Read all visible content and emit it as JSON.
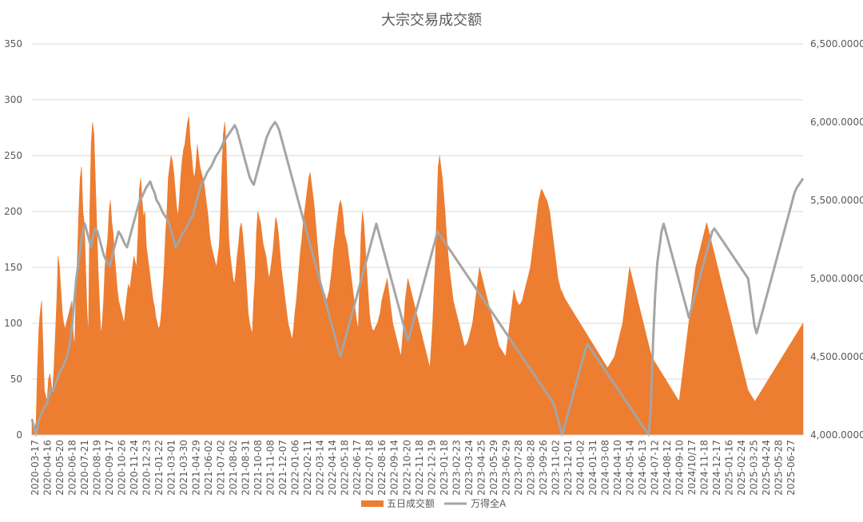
{
  "chart_data": {
    "type": "area",
    "title": "大宗交易成交额",
    "xlabel": "",
    "ylabel": "",
    "y2label": "",
    "grid": true,
    "legend_position": "bottom",
    "ylim": [
      0,
      350
    ],
    "yticks": [
      0,
      50,
      100,
      150,
      200,
      250,
      300,
      350
    ],
    "y2lim": [
      4000,
      6500
    ],
    "y2ticks": [
      4000,
      4500,
      5000,
      5500,
      6000,
      6500
    ],
    "y2tick_labels": [
      "4,000.0000",
      "4,500.0000",
      "5,000.0000",
      "5,500.0000",
      "6,000.0000",
      "6,500.0000"
    ],
    "x_tick_labels": [
      "2020-03-17",
      "2020-04-16",
      "2020-05-20",
      "2020-06-18",
      "2020-07-21",
      "2020-08-19",
      "2020-09-17",
      "2020-10-26",
      "2020-11-24",
      "2020-12-23",
      "2021-01-22",
      "2021-03-01",
      "2021-03-30",
      "2021-04-29",
      "2021-06-02",
      "2021-07-02",
      "2021-08-02",
      "2021-08-31",
      "2021-10-08",
      "2021-11-08",
      "2021-12-07",
      "2022-01-06",
      "2022-02-11",
      "2022-03-14",
      "2022-04-14",
      "2022-05-18",
      "2022-06-17",
      "2022-07-18",
      "2022-08-16",
      "2022-09-14",
      "2022-10-20",
      "2022-11-18",
      "2022-12-19",
      "2023-01-18",
      "2023-02-23",
      "2023-03-24",
      "2023-04-25",
      "2023-05-29",
      "2023-06-29",
      "2023-07-28",
      "2023-08-28",
      "2023-09-26",
      "2023-11-02",
      "2023-12-01",
      "2024-01-02",
      "2024-01-31",
      "2024-03-08",
      "2024-04-10",
      "2024-05-14",
      "2024-06-13",
      "2024-07-12",
      "2024-08-12",
      "2024-09-10",
      "2024/10/17",
      "2024-11-18",
      "2024-12-17",
      "2025-01-16",
      "2025-02-24",
      "2025-03-25",
      "2025-04-24",
      "2025-05-28",
      "2025-06-27"
    ],
    "colors": {
      "bars": "#ed7d31",
      "line": "#a5a5a5",
      "grid": "#d9d9d9",
      "text": "#595959"
    },
    "series": [
      {
        "name": "五日成交额",
        "axis": "left",
        "kind": "area",
        "values": [
          15,
          8,
          5,
          12,
          60,
          95,
          110,
          120,
          80,
          40,
          35,
          30,
          50,
          55,
          45,
          40,
          60,
          90,
          120,
          160,
          150,
          130,
          110,
          100,
          95,
          100,
          105,
          110,
          115,
          120,
          90,
          80,
          130,
          160,
          200,
          230,
          240,
          200,
          190,
          150,
          110,
          90,
          200,
          260,
          280,
          270,
          230,
          190,
          150,
          120,
          90,
          100,
          120,
          150,
          165,
          175,
          200,
          210,
          190,
          180,
          160,
          145,
          130,
          120,
          115,
          110,
          105,
          100,
          115,
          125,
          135,
          130,
          140,
          150,
          160,
          155,
          150,
          180,
          220,
          230,
          210,
          195,
          200,
          170,
          160,
          150,
          140,
          130,
          120,
          115,
          105,
          100,
          95,
          98,
          110,
          130,
          150,
          180,
          200,
          230,
          240,
          250,
          245,
          235,
          220,
          205,
          195,
          210,
          230,
          245,
          255,
          260,
          270,
          280,
          285,
          260,
          250,
          235,
          230,
          240,
          260,
          250,
          240,
          235,
          230,
          225,
          215,
          205,
          195,
          180,
          170,
          165,
          160,
          155,
          150,
          160,
          170,
          200,
          240,
          270,
          280,
          260,
          210,
          175,
          160,
          150,
          140,
          135,
          145,
          160,
          170,
          185,
          190,
          180,
          165,
          150,
          130,
          110,
          100,
          95,
          90,
          120,
          140,
          180,
          200,
          195,
          190,
          180,
          170,
          165,
          160,
          150,
          140,
          145,
          155,
          165,
          180,
          195,
          190,
          180,
          165,
          150,
          140,
          130,
          120,
          110,
          100,
          95,
          90,
          85,
          95,
          110,
          120,
          135,
          150,
          165,
          175,
          190,
          200,
          210,
          220,
          230,
          235,
          225,
          215,
          205,
          190,
          175,
          160,
          145,
          135,
          130,
          128,
          125,
          120,
          125,
          130,
          140,
          150,
          165,
          175,
          185,
          195,
          205,
          210,
          205,
          195,
          180,
          175,
          170,
          160,
          150,
          140,
          130,
          120,
          110,
          100,
          95,
          140,
          180,
          200,
          190,
          170,
          150,
          130,
          110,
          100,
          95,
          93,
          95,
          98,
          100,
          105,
          110,
          120,
          125,
          130,
          135,
          140,
          130,
          120,
          110,
          100,
          95,
          90,
          85,
          80,
          75,
          70,
          85,
          100,
          120,
          130,
          140,
          135,
          130,
          125,
          120,
          115,
          110,
          105,
          100,
          95,
          90,
          85,
          80,
          75,
          70,
          65,
          60,
          80,
          100,
          130,
          160,
          200,
          240,
          250,
          240,
          230,
          215,
          200,
          180,
          165,
          150,
          140,
          130,
          120,
          115,
          110,
          105,
          100,
          95,
          90,
          85,
          80,
          80,
          82,
          85,
          90,
          95,
          100,
          110,
          120,
          130,
          140,
          150,
          145,
          140,
          135,
          130,
          125,
          120,
          115,
          110,
          105,
          100,
          95,
          90,
          85,
          80,
          78,
          76,
          74,
          72,
          70,
          80,
          90,
          100,
          110,
          120,
          130,
          125,
          120,
          118,
          116,
          118,
          120,
          125,
          130,
          135,
          140,
          145,
          150,
          160,
          170,
          180,
          190,
          200,
          210,
          215,
          220,
          218,
          215,
          212,
          210,
          205,
          200,
          190,
          180,
          170,
          160,
          150,
          140,
          135,
          130,
          128,
          125,
          122,
          120,
          118,
          116,
          114,
          112,
          110,
          108,
          106,
          104,
          102,
          100,
          98,
          96,
          94,
          92,
          90,
          88,
          86,
          84,
          82,
          80,
          78,
          76,
          74,
          72,
          70,
          68,
          66,
          64,
          62,
          60,
          62,
          64,
          66,
          68,
          70,
          75,
          80,
          85,
          90,
          95,
          100,
          110,
          120,
          130,
          140,
          150,
          145,
          140,
          135,
          130,
          125,
          120,
          115,
          110,
          105,
          100,
          95,
          90,
          85,
          80,
          75,
          70,
          68,
          66,
          64,
          62,
          60,
          58,
          56,
          54,
          52,
          50,
          48,
          46,
          44,
          42,
          40,
          38,
          36,
          34,
          32,
          30,
          40,
          50,
          60,
          70,
          80,
          90,
          100,
          110,
          120,
          130,
          140,
          150,
          155,
          160,
          165,
          170,
          175,
          180,
          185,
          190,
          185,
          180,
          175,
          170,
          165,
          160,
          155,
          150,
          145,
          140,
          135,
          130,
          125,
          120,
          115,
          110,
          105,
          100,
          95,
          90,
          85,
          80,
          75,
          70,
          65,
          60,
          55,
          50,
          45,
          40,
          38,
          36,
          34,
          32,
          30,
          32,
          34,
          36,
          38,
          40,
          42,
          44,
          46,
          48,
          50,
          52,
          54,
          56,
          58,
          60,
          62,
          64,
          66,
          68,
          70,
          72,
          74,
          76,
          78,
          80,
          82,
          84,
          86,
          88,
          90,
          92,
          94,
          96,
          98,
          100
        ],
        "note_values": "approximate, evenly spaced samples read from the plot"
      },
      {
        "name": "万得全A",
        "axis": "right",
        "kind": "line",
        "values": [
          4100,
          4050,
          4000,
          4080,
          4120,
          4150,
          4180,
          4200,
          4250,
          4300,
          4280,
          4320,
          4360,
          4400,
          4420,
          4450,
          4480,
          4520,
          4600,
          4700,
          4850,
          5000,
          5100,
          5200,
          5300,
          5350,
          5300,
          5250,
          5200,
          5280,
          5320,
          5300,
          5250,
          5200,
          5150,
          5120,
          5100,
          5080,
          5150,
          5200,
          5250,
          5300,
          5280,
          5250,
          5220,
          5200,
          5250,
          5300,
          5350,
          5400,
          5450,
          5500,
          5520,
          5550,
          5580,
          5600,
          5620,
          5580,
          5550,
          5500,
          5480,
          5450,
          5420,
          5400,
          5380,
          5350,
          5300,
          5250,
          5200,
          5220,
          5250,
          5280,
          5300,
          5320,
          5350,
          5380,
          5400,
          5450,
          5500,
          5550,
          5600,
          5620,
          5650,
          5680,
          5700,
          5720,
          5750,
          5780,
          5800,
          5820,
          5850,
          5880,
          5900,
          5920,
          5940,
          5960,
          5980,
          5950,
          5900,
          5850,
          5800,
          5750,
          5700,
          5650,
          5620,
          5600,
          5650,
          5700,
          5750,
          5800,
          5850,
          5900,
          5930,
          5960,
          5980,
          6000,
          5980,
          5950,
          5900,
          5850,
          5800,
          5750,
          5700,
          5650,
          5600,
          5550,
          5500,
          5450,
          5400,
          5350,
          5300,
          5250,
          5200,
          5150,
          5100,
          5050,
          5000,
          4950,
          4900,
          4850,
          4800,
          4750,
          4700,
          4650,
          4600,
          4550,
          4500,
          4550,
          4600,
          4650,
          4700,
          4750,
          4800,
          4850,
          4900,
          4950,
          5000,
          5050,
          5100,
          5150,
          5200,
          5250,
          5300,
          5350,
          5300,
          5250,
          5200,
          5150,
          5100,
          5050,
          5000,
          4950,
          4900,
          4850,
          4800,
          4750,
          4700,
          4650,
          4600,
          4650,
          4700,
          4750,
          4800,
          4850,
          4900,
          4950,
          5000,
          5050,
          5100,
          5150,
          5200,
          5250,
          5300,
          5280,
          5260,
          5240,
          5220,
          5200,
          5180,
          5160,
          5140,
          5120,
          5100,
          5080,
          5060,
          5040,
          5020,
          5000,
          4980,
          4960,
          4940,
          4920,
          4900,
          4880,
          4860,
          4840,
          4820,
          4800,
          4780,
          4760,
          4740,
          4720,
          4700,
          4680,
          4660,
          4640,
          4620,
          4600,
          4580,
          4560,
          4540,
          4520,
          4500,
          4480,
          4460,
          4440,
          4420,
          4400,
          4380,
          4360,
          4340,
          4320,
          4300,
          4280,
          4260,
          4240,
          4220,
          4200,
          4150,
          4100,
          4050,
          4000,
          4050,
          4100,
          4150,
          4200,
          4250,
          4300,
          4350,
          4400,
          4450,
          4500,
          4550,
          4580,
          4560,
          4540,
          4520,
          4500,
          4480,
          4460,
          4440,
          4420,
          4400,
          4380,
          4360,
          4340,
          4320,
          4300,
          4280,
          4260,
          4240,
          4220,
          4200,
          4180,
          4160,
          4140,
          4120,
          4100,
          4080,
          4060,
          4040,
          4020,
          4000,
          4200,
          4600,
          4900,
          5100,
          5200,
          5300,
          5350,
          5300,
          5250,
          5200,
          5150,
          5100,
          5050,
          5000,
          4950,
          4900,
          4850,
          4800,
          4750,
          4800,
          4850,
          4900,
          4950,
          5000,
          5050,
          5100,
          5150,
          5200,
          5250,
          5300,
          5320,
          5300,
          5280,
          5260,
          5240,
          5220,
          5200,
          5180,
          5160,
          5140,
          5120,
          5100,
          5080,
          5060,
          5040,
          5020,
          5000,
          4900,
          4800,
          4700,
          4650,
          4700,
          4750,
          4800,
          4850,
          4900,
          4950,
          5000,
          5050,
          5100,
          5150,
          5200,
          5250,
          5300,
          5350,
          5400,
          5450,
          5500,
          5550,
          5580,
          5600,
          5620,
          5640
        ]
      }
    ]
  }
}
